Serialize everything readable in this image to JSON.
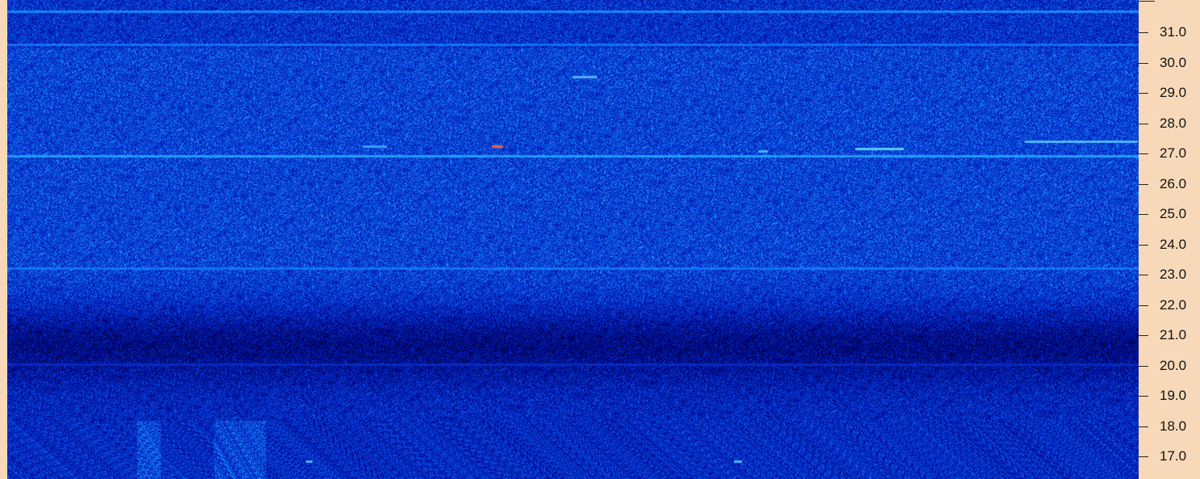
{
  "window": {
    "title": ""
  },
  "waterfall": {
    "description_colors": {
      "low": "#000a40",
      "mid": "#0a3ad0",
      "high": "#2aa4ff",
      "peak": "#ff6a3a"
    }
  },
  "frequency_scale": {
    "unit": "",
    "labels": [
      "31.0",
      "30.0",
      "29.0",
      "28.0",
      "27.0",
      "26.0",
      "25.0",
      "24.0",
      "23.0",
      "22.0",
      "21.0",
      "20.0",
      "19.0",
      "18.0",
      "17.0"
    ],
    "values": [
      31.0,
      30.0,
      29.0,
      28.0,
      27.0,
      26.0,
      25.0,
      24.0,
      23.0,
      22.0,
      21.0,
      20.0,
      19.0,
      18.0,
      17.0
    ]
  }
}
